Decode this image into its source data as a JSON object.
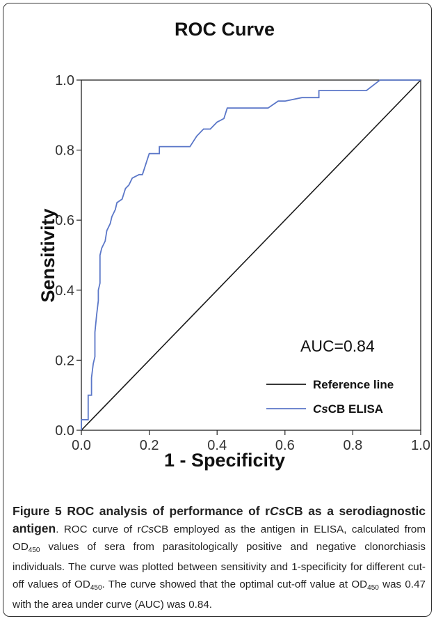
{
  "chart_data": {
    "type": "line",
    "title": "ROC Curve",
    "xlabel": "1 - Specificity",
    "ylabel": "Sensitivity",
    "xlim": [
      0.0,
      1.0
    ],
    "ylim": [
      0.0,
      1.0
    ],
    "xticks": [
      "0.0",
      "0.2",
      "0.4",
      "0.6",
      "0.8",
      "1.0"
    ],
    "yticks": [
      "0.0",
      "0.2",
      "0.4",
      "0.6",
      "0.8",
      "1.0"
    ],
    "grid": false,
    "legend_position": "bottom-right",
    "annotation": "AUC=0.84",
    "series": [
      {
        "name": "Reference line",
        "color": "#1a1a1a",
        "points": [
          [
            0.0,
            0.0
          ],
          [
            1.0,
            1.0
          ]
        ]
      },
      {
        "name": "CsCB ELISA",
        "name_italic_prefix": "Cs",
        "name_rest": "CB ELISA",
        "color": "#5b77c8",
        "points": [
          [
            0.0,
            0.0
          ],
          [
            0.0,
            0.03
          ],
          [
            0.02,
            0.03
          ],
          [
            0.02,
            0.1
          ],
          [
            0.03,
            0.1
          ],
          [
            0.03,
            0.15
          ],
          [
            0.035,
            0.19
          ],
          [
            0.04,
            0.21
          ],
          [
            0.04,
            0.28
          ],
          [
            0.045,
            0.33
          ],
          [
            0.05,
            0.37
          ],
          [
            0.05,
            0.4
          ],
          [
            0.055,
            0.42
          ],
          [
            0.055,
            0.5
          ],
          [
            0.06,
            0.52
          ],
          [
            0.07,
            0.54
          ],
          [
            0.075,
            0.57
          ],
          [
            0.085,
            0.59
          ],
          [
            0.09,
            0.61
          ],
          [
            0.1,
            0.63
          ],
          [
            0.105,
            0.65
          ],
          [
            0.12,
            0.66
          ],
          [
            0.13,
            0.69
          ],
          [
            0.14,
            0.7
          ],
          [
            0.15,
            0.72
          ],
          [
            0.17,
            0.73
          ],
          [
            0.18,
            0.73
          ],
          [
            0.19,
            0.76
          ],
          [
            0.2,
            0.79
          ],
          [
            0.23,
            0.79
          ],
          [
            0.23,
            0.81
          ],
          [
            0.32,
            0.81
          ],
          [
            0.34,
            0.84
          ],
          [
            0.36,
            0.86
          ],
          [
            0.38,
            0.86
          ],
          [
            0.4,
            0.88
          ],
          [
            0.42,
            0.89
          ],
          [
            0.43,
            0.92
          ],
          [
            0.55,
            0.92
          ],
          [
            0.58,
            0.94
          ],
          [
            0.6,
            0.94
          ],
          [
            0.65,
            0.95
          ],
          [
            0.7,
            0.95
          ],
          [
            0.7,
            0.97
          ],
          [
            0.84,
            0.97
          ],
          [
            0.88,
            1.0
          ],
          [
            1.0,
            1.0
          ]
        ]
      }
    ]
  },
  "caption": {
    "head_prefix": "Figure 5 ROC analysis of performance of r",
    "head_italic": "Cs",
    "head_suffix": "CB as a serodiagnostic antigen",
    "body_1": ". ROC curve of r",
    "body_2": "CB employed as the antigen in ELISA, calculated from OD",
    "body_3": " values of sera from parasitologically positive and negative clonorchiasis individuals. The curve was plotted between sensitivity and 1-specificity for different cut-off values of OD",
    "body_4": ". The curve showed that the optimal cut-off value at OD",
    "body_5": " was 0.47 with the area under curve (AUC) was 0.84.",
    "italic_cs": "Cs",
    "sub_450": "450"
  }
}
